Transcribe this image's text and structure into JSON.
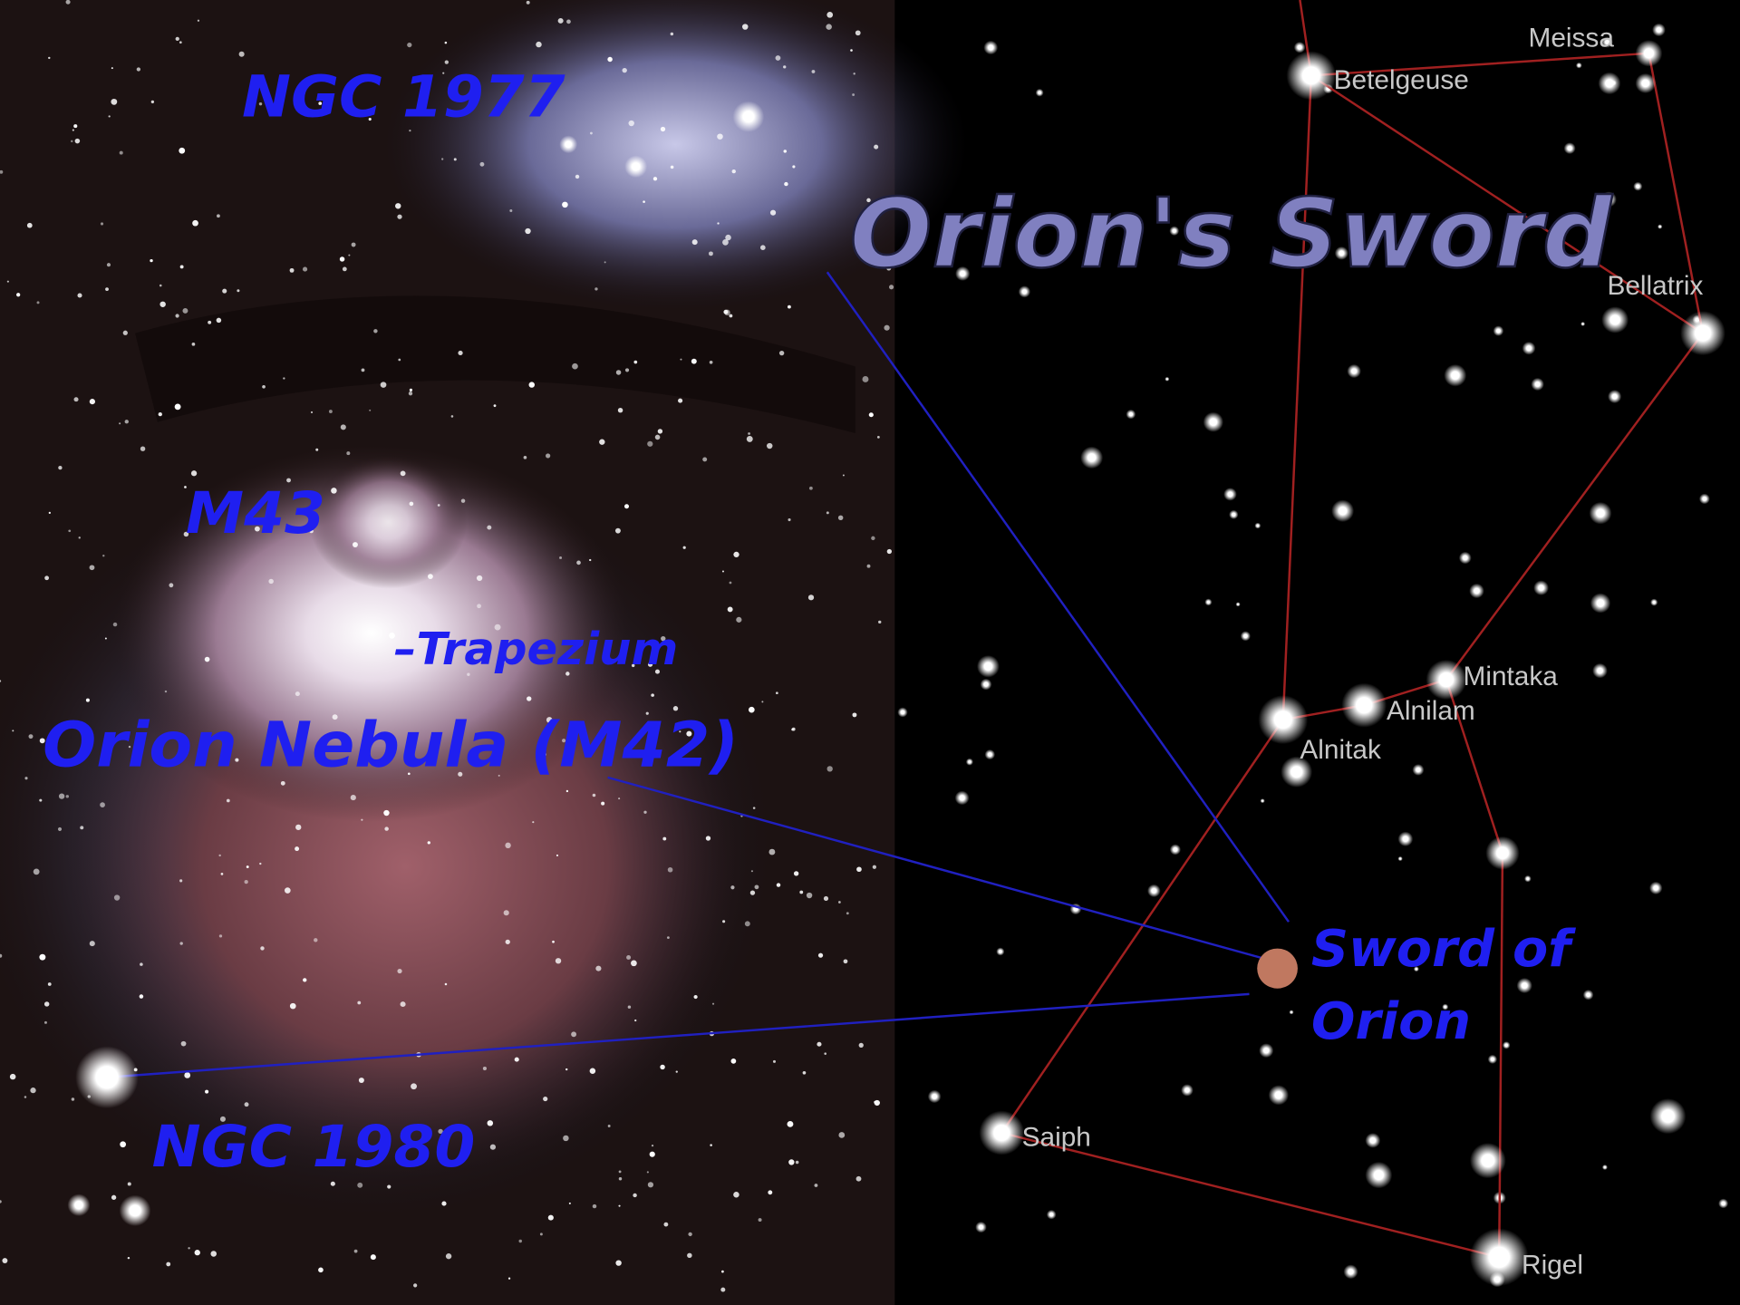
{
  "title": "Orion's Sword",
  "photo_labels": {
    "ngc_1977": "NGC 1977",
    "m43": "M43",
    "trapezium": "–Trapezium",
    "orion_nebula": "Orion Nebula (M42)",
    "ngc_1980": "NGC 1980"
  },
  "sword_label_lines": [
    "Sword of",
    "Orion"
  ],
  "stars": {
    "meissa": "Meissa",
    "betelgeuse": "Betelgeuse",
    "bellatrix": "Bellatrix",
    "mintaka": "Mintaka",
    "alnilam": "Alnilam",
    "alnitak": "Alnitak",
    "saiph": "Saiph",
    "rigel": "Rigel"
  }
}
